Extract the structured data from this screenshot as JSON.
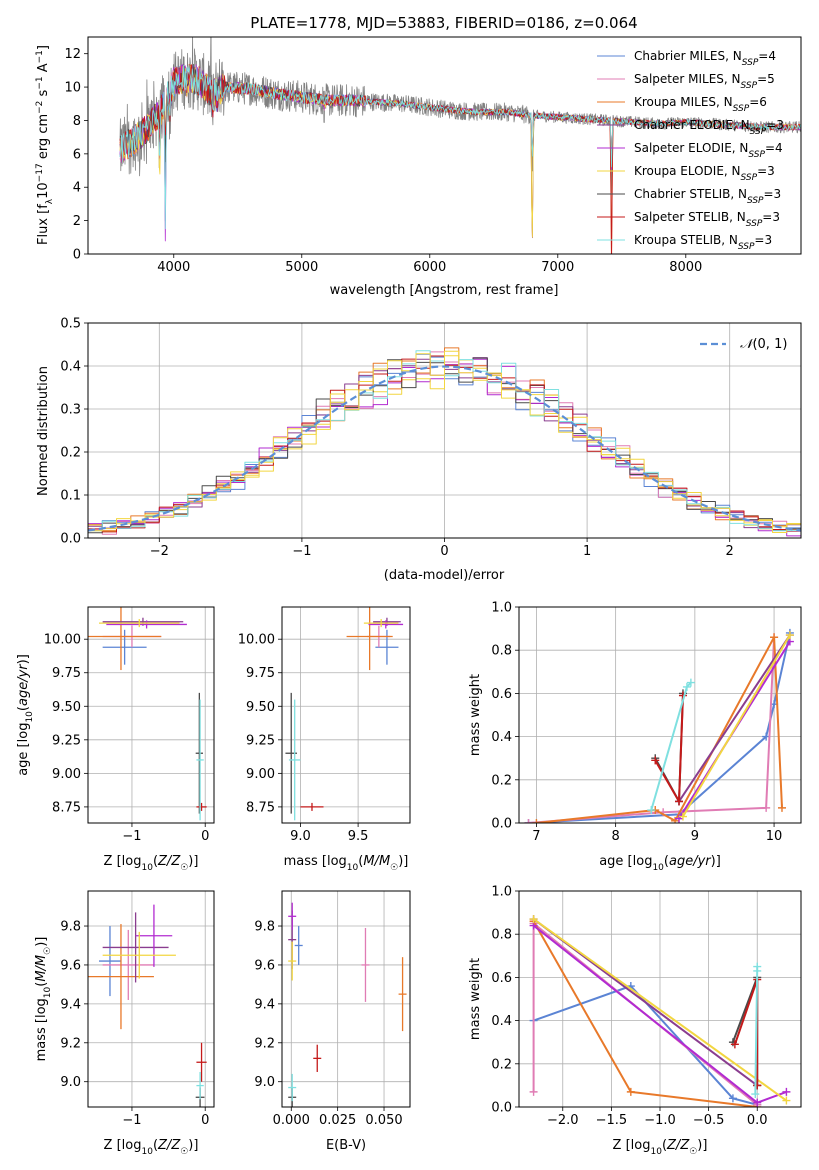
{
  "figure": {
    "title": "PLATE=1778, MJD=53883, FIBERID=0186, z=0.064"
  },
  "colors": {
    "Chabrier MILES": "#5b84d4",
    "Salpeter MILES": "#e07cb4",
    "Kroupa MILES": "#e8792a",
    "Chabrier ELODIE": "#8a3d8f",
    "Salpeter ELODIE": "#b22bd1",
    "Kroupa ELODIE": "#f2d641",
    "Chabrier STELIB": "#4a4a4a",
    "Salpeter STELIB": "#c41a1a",
    "Kroupa STELIB": "#7fe0e0",
    "data": "#808080",
    "gaussian": "#5b8fd6"
  },
  "chart_data": [
    {
      "id": "spectrum",
      "type": "line",
      "title": "PLATE=1778, MJD=53883, FIBERID=0186, z=0.064",
      "xlabel": "wavelength [Angstrom, rest frame]",
      "ylabel": "Flux [f_λ 10^-17 erg cm^-2 s^-1 A^-1]",
      "xlim": [
        3330,
        8900
      ],
      "ylim": [
        0,
        13
      ],
      "xticks": [
        "4000",
        "5000",
        "6000",
        "7000",
        "8000"
      ],
      "yticks": [
        "0",
        "2",
        "4",
        "6",
        "8",
        "10",
        "12"
      ],
      "grid": false,
      "legend": "top-right",
      "series": [
        {
          "name": "Chabrier MILES, N_SSP=4",
          "base": "Chabrier MILES",
          "sub": "SSP",
          "n": "4"
        },
        {
          "name": "Salpeter MILES, N_SSP=5",
          "base": "Salpeter MILES",
          "sub": "SSP",
          "n": "5"
        },
        {
          "name": "Kroupa MILES, N_SSP=6",
          "base": "Kroupa MILES",
          "sub": "SSP",
          "n": "6"
        },
        {
          "name": "Chabrier ELODIE, N_SSP=3",
          "base": "Chabrier ELODIE",
          "sub": "SSP",
          "n": "3"
        },
        {
          "name": "Salpeter ELODIE, N_SSP=4",
          "base": "Salpeter ELODIE",
          "sub": "SSP",
          "n": "4"
        },
        {
          "name": "Kroupa ELODIE, N_SSP=3",
          "base": "Kroupa ELODIE",
          "sub": "SSP",
          "n": "3"
        },
        {
          "name": "Chabrier STELIB, N_SSP=3",
          "base": "Chabrier STELIB",
          "sub": "SSP",
          "n": "3"
        },
        {
          "name": "Salpeter STELIB, N_SSP=3",
          "base": "Salpeter STELIB",
          "sub": "SSP",
          "n": "3"
        },
        {
          "name": "Kroupa STELIB, N_SSP=3",
          "base": "Kroupa STELIB",
          "sub": "SSP",
          "n": "3"
        }
      ],
      "continuum": [
        [
          3580,
          6.2
        ],
        [
          3650,
          6.6
        ],
        [
          3720,
          7.0
        ],
        [
          3800,
          7.6
        ],
        [
          3900,
          8.6
        ],
        [
          3950,
          9.4
        ],
        [
          4000,
          10.3
        ],
        [
          4100,
          10.6
        ],
        [
          4200,
          10.4
        ],
        [
          4300,
          9.6
        ],
        [
          4400,
          10.0
        ],
        [
          4600,
          9.9
        ],
        [
          4800,
          9.6
        ],
        [
          5000,
          9.4
        ],
        [
          5200,
          9.2
        ],
        [
          5400,
          9.2
        ],
        [
          5600,
          9.1
        ],
        [
          5800,
          9.0
        ],
        [
          6000,
          8.8
        ],
        [
          6200,
          8.6
        ],
        [
          6400,
          8.5
        ],
        [
          6600,
          8.5
        ],
        [
          6800,
          8.3
        ],
        [
          7000,
          8.2
        ],
        [
          7200,
          8.1
        ],
        [
          7400,
          8.0
        ],
        [
          7600,
          7.9
        ],
        [
          7800,
          7.8
        ],
        [
          8000,
          7.9
        ],
        [
          8200,
          7.8
        ],
        [
          8400,
          7.7
        ],
        [
          8600,
          7.6
        ]
      ],
      "absorption": [
        {
          "x": 3889,
          "depth": 4.5,
          "series": [
            "Chabrier ELODIE",
            "Salpeter ELODIE",
            "Kroupa ELODIE",
            "Kroupa STELIB"
          ]
        },
        {
          "x": 3934,
          "depth": 8.0,
          "series": [
            "Chabrier ELODIE",
            "Salpeter ELODIE",
            "Kroupa STELIB"
          ]
        },
        {
          "x": 3969,
          "depth": 3.0,
          "series": []
        },
        {
          "x": 4102,
          "depth": 1.5,
          "series": []
        },
        {
          "x": 4305,
          "depth": 2.5,
          "series": []
        },
        {
          "x": 4341,
          "depth": 1.8,
          "series": []
        },
        {
          "x": 5175,
          "depth": 1.0,
          "series": []
        },
        {
          "x": 6800,
          "depth": 8.4,
          "series": [
            "Kroupa MILES",
            "Chabrier ELODIE",
            "Kroupa ELODIE"
          ]
        },
        {
          "x": 7420,
          "depth": 8.0,
          "series": [
            "Salpeter STELIB",
            "Kroupa MILES"
          ]
        }
      ]
    },
    {
      "id": "residuals",
      "type": "line",
      "xlabel": "(data-model)/error",
      "ylabel": "Normed distribution",
      "xlim": [
        -2.5,
        2.5
      ],
      "ylim": [
        0,
        0.5
      ],
      "xticks": [
        "−2",
        "−1",
        "0",
        "1",
        "2"
      ],
      "yticks": [
        "0.0",
        "0.1",
        "0.2",
        "0.3",
        "0.4",
        "0.5"
      ],
      "grid": true,
      "legend": "top-right",
      "gaussian_label": "N(0, 1)",
      "gaussian": {
        "mean": 0,
        "sigma": 1
      },
      "bin_width": 0.1,
      "series_colors": [
        "Chabrier MILES",
        "Salpeter MILES",
        "Kroupa MILES",
        "Chabrier ELODIE",
        "Salpeter ELODIE",
        "Kroupa ELODIE",
        "Chabrier STELIB",
        "Salpeter STELIB",
        "Kroupa STELIB",
        "Kroupa ELODIE"
      ]
    },
    {
      "id": "age-vs-Z",
      "type": "scatter",
      "xlabel": "Z [log10(Z/Z☉)]",
      "ylabel": "age [log10(age/yr)]",
      "xlim": [
        -1.6,
        0.12
      ],
      "ylim": [
        8.63,
        10.24
      ],
      "xticks": [
        -1,
        0
      ],
      "xticklabels": [
        "−1",
        "0"
      ],
      "yticks": [
        8.75,
        9.0,
        9.25,
        9.5,
        9.75,
        10.0
      ],
      "yticklabels": [
        "8.75",
        "9.00",
        "9.25",
        "9.50",
        "9.75",
        "10.00"
      ],
      "grid": true,
      "points": [
        {
          "series": "Chabrier MILES",
          "x": -1.1,
          "xerr": 0.3,
          "y": 9.94,
          "yerr": 0.13
        },
        {
          "series": "Salpeter MILES",
          "x": -1.0,
          "xerr": 0.4,
          "y": 10.02,
          "yerr": 0.08
        },
        {
          "series": "Kroupa MILES",
          "x": -1.15,
          "xerr": 0.55,
          "y": 10.02,
          "yerr": 0.25
        },
        {
          "series": "Chabrier ELODIE",
          "x": -0.85,
          "xerr": 0.55,
          "y": 10.13,
          "yerr": 0.03
        },
        {
          "series": "Salpeter ELODIE",
          "x": -0.8,
          "xerr": 0.55,
          "y": 10.11,
          "yerr": 0.03
        },
        {
          "series": "Kroupa ELODIE",
          "x": -0.9,
          "xerr": 0.55,
          "y": 10.12,
          "yerr": 0.03
        },
        {
          "series": "Chabrier STELIB",
          "x": -0.08,
          "xerr": 0.05,
          "y": 9.15,
          "yerr": 0.45
        },
        {
          "series": "Salpeter STELIB",
          "x": -0.05,
          "xerr": 0.07,
          "y": 8.75,
          "yerr": 0.0
        },
        {
          "series": "Kroupa STELIB",
          "x": -0.07,
          "xerr": 0.05,
          "y": 9.1,
          "yerr": 0.45
        }
      ]
    },
    {
      "id": "age-vs-mass",
      "type": "scatter",
      "xlabel": "mass [log10(M/M☉)]",
      "ylabel": "",
      "xlim": [
        8.84,
        9.95
      ],
      "ylim": [
        8.63,
        10.24
      ],
      "xticks": [
        9.0,
        9.5
      ],
      "xticklabels": [
        "9.0",
        "9.5"
      ],
      "yticks": [
        8.75,
        9.0,
        9.25,
        9.5,
        9.75,
        10.0
      ],
      "yticklabels": [
        "8.75",
        "9.00",
        "9.25",
        "9.50",
        "9.75",
        "10.00"
      ],
      "grid": true,
      "points": [
        {
          "series": "Chabrier MILES",
          "x": 9.75,
          "xerr": 0.1,
          "y": 9.94,
          "yerr": 0.13
        },
        {
          "series": "Salpeter MILES",
          "x": 9.68,
          "xerr": 0.1,
          "y": 10.02,
          "yerr": 0.08
        },
        {
          "series": "Kroupa MILES",
          "x": 9.6,
          "xerr": 0.2,
          "y": 10.02,
          "yerr": 0.25
        },
        {
          "series": "Chabrier ELODIE",
          "x": 9.75,
          "xerr": 0.12,
          "y": 10.13,
          "yerr": 0.03
        },
        {
          "series": "Salpeter ELODIE",
          "x": 9.74,
          "xerr": 0.15,
          "y": 10.11,
          "yerr": 0.03
        },
        {
          "series": "Kroupa ELODIE",
          "x": 9.7,
          "xerr": 0.15,
          "y": 10.12,
          "yerr": 0.03
        },
        {
          "series": "Chabrier STELIB",
          "x": 8.92,
          "xerr": 0.05,
          "y": 9.15,
          "yerr": 0.45
        },
        {
          "series": "Salpeter STELIB",
          "x": 9.1,
          "xerr": 0.1,
          "y": 8.75,
          "yerr": 0.0
        },
        {
          "series": "Kroupa STELIB",
          "x": 8.95,
          "xerr": 0.05,
          "y": 9.1,
          "yerr": 0.45
        }
      ]
    },
    {
      "id": "weight-vs-age",
      "type": "line",
      "xlabel": "age [log10(age/yr)]",
      "ylabel": "mass weight",
      "xlim": [
        6.78,
        10.34
      ],
      "ylim": [
        0,
        1.0
      ],
      "xticks": [
        7,
        8,
        9,
        10
      ],
      "xticklabels": [
        "7",
        "8",
        "9",
        "10"
      ],
      "yticks": [
        0,
        0.2,
        0.4,
        0.6,
        0.8,
        1.0
      ],
      "yticklabels": [
        "0.0",
        "0.2",
        "0.4",
        "0.6",
        "0.8",
        "1.0"
      ],
      "grid": true,
      "series": [
        {
          "series": "Chabrier MILES",
          "x": [
            6.9,
            8.8,
            9.9,
            10.0,
            10.2
          ],
          "y": [
            0.0,
            0.04,
            0.4,
            0.55,
            0.88
          ]
        },
        {
          "series": "Salpeter MILES",
          "x": [
            6.9,
            8.6,
            9.9,
            10.0
          ],
          "y": [
            0.0,
            0.05,
            0.07,
            0.86
          ]
        },
        {
          "series": "Kroupa MILES",
          "x": [
            7.0,
            8.5,
            8.75,
            10.0,
            10.1
          ],
          "y": [
            0.0,
            0.06,
            0.01,
            0.86,
            0.07
          ]
        },
        {
          "series": "Chabrier ELODIE",
          "x": [
            8.8,
            10.2
          ],
          "y": [
            0.1,
            0.87
          ]
        },
        {
          "series": "Salpeter ELODIE",
          "x": [
            8.8,
            10.2
          ],
          "y": [
            0.02,
            0.84
          ]
        },
        {
          "series": "Kroupa ELODIE",
          "x": [
            8.85,
            10.2
          ],
          "y": [
            0.03,
            0.87
          ]
        },
        {
          "series": "Chabrier STELIB",
          "x": [
            8.5,
            8.8,
            8.85
          ],
          "y": [
            0.3,
            0.1,
            0.6
          ]
        },
        {
          "series": "Salpeter STELIB",
          "x": [
            8.5,
            8.8,
            8.85
          ],
          "y": [
            0.29,
            0.1,
            0.59
          ]
        },
        {
          "series": "Kroupa STELIB",
          "x": [
            8.45,
            8.9,
            8.95
          ],
          "y": [
            0.06,
            0.63,
            0.65
          ]
        }
      ]
    },
    {
      "id": "mass-vs-Z",
      "type": "scatter",
      "xlabel": "Z [log10(Z/Z☉)]",
      "ylabel": "mass [log10(M/M☉)]",
      "xlim": [
        -1.6,
        0.12
      ],
      "ylim": [
        8.87,
        9.98
      ],
      "xticks": [
        -1,
        0
      ],
      "xticklabels": [
        "−1",
        "0"
      ],
      "yticks": [
        9.0,
        9.2,
        9.4,
        9.6,
        9.8
      ],
      "yticklabels": [
        "9.0",
        "9.2",
        "9.4",
        "9.6",
        "9.8"
      ],
      "grid": true,
      "points": [
        {
          "series": "Chabrier MILES",
          "x": -1.3,
          "xerr": 0.15,
          "y": 9.62,
          "yerr": 0.18
        },
        {
          "series": "Salpeter MILES",
          "x": -1.05,
          "xerr": 0.35,
          "y": 9.6,
          "yerr": 0.18
        },
        {
          "series": "Kroupa MILES",
          "x": -1.15,
          "xerr": 0.45,
          "y": 9.54,
          "yerr": 0.27
        },
        {
          "series": "Chabrier ELODIE",
          "x": -0.95,
          "xerr": 0.45,
          "y": 9.69,
          "yerr": 0.18
        },
        {
          "series": "Salpeter ELODIE",
          "x": -0.7,
          "xerr": 0.25,
          "y": 9.75,
          "yerr": 0.16
        },
        {
          "series": "Kroupa ELODIE",
          "x": -0.9,
          "xerr": 0.5,
          "y": 9.65,
          "yerr": 0.12
        },
        {
          "series": "Chabrier STELIB",
          "x": -0.07,
          "xerr": 0.06,
          "y": 8.92,
          "yerr": 0.05
        },
        {
          "series": "Salpeter STELIB",
          "x": -0.05,
          "xerr": 0.07,
          "y": 9.1,
          "yerr": 0.1
        },
        {
          "series": "Kroupa STELIB",
          "x": -0.07,
          "xerr": 0.05,
          "y": 8.98,
          "yerr": 0.07
        }
      ]
    },
    {
      "id": "mass-vs-ebv",
      "type": "scatter",
      "xlabel": "E(B-V)",
      "ylabel": "",
      "xlim": [
        -0.005,
        0.064
      ],
      "ylim": [
        8.87,
        9.98
      ],
      "xticks": [
        0.0,
        0.025,
        0.05
      ],
      "xticklabels": [
        "0.000",
        "0.025",
        "0.050"
      ],
      "yticks": [
        9.0,
        9.2,
        9.4,
        9.6,
        9.8
      ],
      "yticklabels": [
        "9.0",
        "9.2",
        "9.4",
        "9.6",
        "9.8"
      ],
      "grid": true,
      "points": [
        {
          "series": "Chabrier MILES",
          "x": 0.004,
          "xerr": 0,
          "y": 9.7,
          "yerr": 0.1
        },
        {
          "series": "Salpeter MILES",
          "x": 0.04,
          "xerr": 0,
          "y": 9.6,
          "yerr": 0.19
        },
        {
          "series": "Kroupa MILES",
          "x": 0.06,
          "xerr": 0,
          "y": 9.45,
          "yerr": 0.19
        },
        {
          "series": "Chabrier ELODIE",
          "x": 0.0005,
          "xerr": 0,
          "y": 9.73,
          "yerr": 0.15
        },
        {
          "series": "Salpeter ELODIE",
          "x": 0.0005,
          "xerr": 0,
          "y": 9.85,
          "yerr": 0.07
        },
        {
          "series": "Kroupa ELODIE",
          "x": 0.0005,
          "xerr": 0,
          "y": 9.62,
          "yerr": 0.1
        },
        {
          "series": "Chabrier STELIB",
          "x": 0.0005,
          "xerr": 0,
          "y": 8.92,
          "yerr": 0.05
        },
        {
          "series": "Salpeter STELIB",
          "x": 0.014,
          "xerr": 0,
          "y": 9.12,
          "yerr": 0.07
        },
        {
          "series": "Kroupa STELIB",
          "x": 0.0005,
          "xerr": 0,
          "y": 8.97,
          "yerr": 0.07
        }
      ]
    },
    {
      "id": "weight-vs-Z",
      "type": "line",
      "xlabel": "Z [log10(Z/Z☉)]",
      "ylabel": "mass weight",
      "xlim": [
        -2.45,
        0.45
      ],
      "ylim": [
        0,
        1.0
      ],
      "xticks": [
        -2.0,
        -1.5,
        -1.0,
        -0.5,
        0.0
      ],
      "xticklabels": [
        "−2.0",
        "−1.5",
        "−1.0",
        "−0.5",
        "0.0"
      ],
      "yticks": [
        0,
        0.2,
        0.4,
        0.6,
        0.8,
        1.0
      ],
      "yticklabels": [
        "0.0",
        "0.2",
        "0.4",
        "0.6",
        "0.8",
        "1.0"
      ],
      "grid": true,
      "series": [
        {
          "series": "Chabrier MILES",
          "x": [
            -2.3,
            -1.3,
            -0.25,
            0.0
          ],
          "y": [
            0.4,
            0.56,
            0.04,
            0.01
          ]
        },
        {
          "series": "Salpeter MILES",
          "x": [
            -2.3,
            -2.3,
            0.0
          ],
          "y": [
            0.07,
            0.85,
            0.01
          ]
        },
        {
          "series": "Kroupa MILES",
          "x": [
            -2.3,
            -1.3,
            0.0
          ],
          "y": [
            0.86,
            0.07,
            0.0
          ]
        },
        {
          "series": "Chabrier ELODIE",
          "x": [
            -2.3,
            0.0
          ],
          "y": [
            0.87,
            0.1
          ]
        },
        {
          "series": "Salpeter ELODIE",
          "x": [
            -2.3,
            0.0,
            0.3
          ],
          "y": [
            0.84,
            0.02,
            0.07
          ]
        },
        {
          "series": "Kroupa ELODIE",
          "x": [
            -2.3,
            0.3
          ],
          "y": [
            0.87,
            0.03
          ]
        },
        {
          "series": "Chabrier STELIB",
          "x": [
            -0.25,
            0.0,
            0.0
          ],
          "y": [
            0.3,
            0.6,
            0.1
          ]
        },
        {
          "series": "Salpeter STELIB",
          "x": [
            -0.23,
            0.0,
            0.0
          ],
          "y": [
            0.29,
            0.59,
            0.1
          ]
        },
        {
          "series": "Kroupa STELIB",
          "x": [
            -0.02,
            0.0,
            0.0
          ],
          "y": [
            0.06,
            0.63,
            0.65
          ]
        }
      ]
    }
  ]
}
